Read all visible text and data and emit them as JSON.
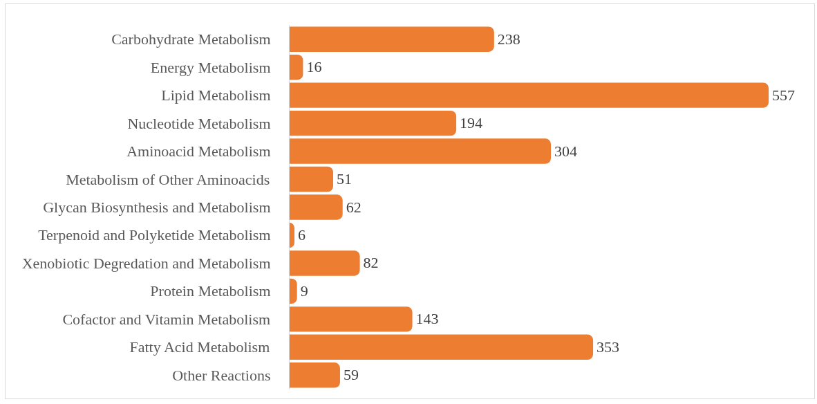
{
  "chart_data": {
    "type": "bar",
    "orientation": "horizontal",
    "categories": [
      "Carbohydrate Metabolism",
      "Energy Metabolism",
      "Lipid Metabolism",
      "Nucleotide Metabolism",
      "Aminoacid Metabolism",
      "Metabolism of Other Aminoacids",
      "Glycan Biosynthesis and Metabolism",
      "Terpenoid and Polyketide Metabolism",
      "Xenobiotic Degredation and Metabolism",
      "Protein Metabolism",
      "Cofactor and Vitamin Metabolism",
      "Fatty Acid Metabolism",
      "Other Reactions"
    ],
    "values": [
      238,
      16,
      557,
      194,
      304,
      51,
      62,
      6,
      82,
      9,
      143,
      353,
      59
    ],
    "color": "#ed7d31",
    "data_labels": true
  }
}
